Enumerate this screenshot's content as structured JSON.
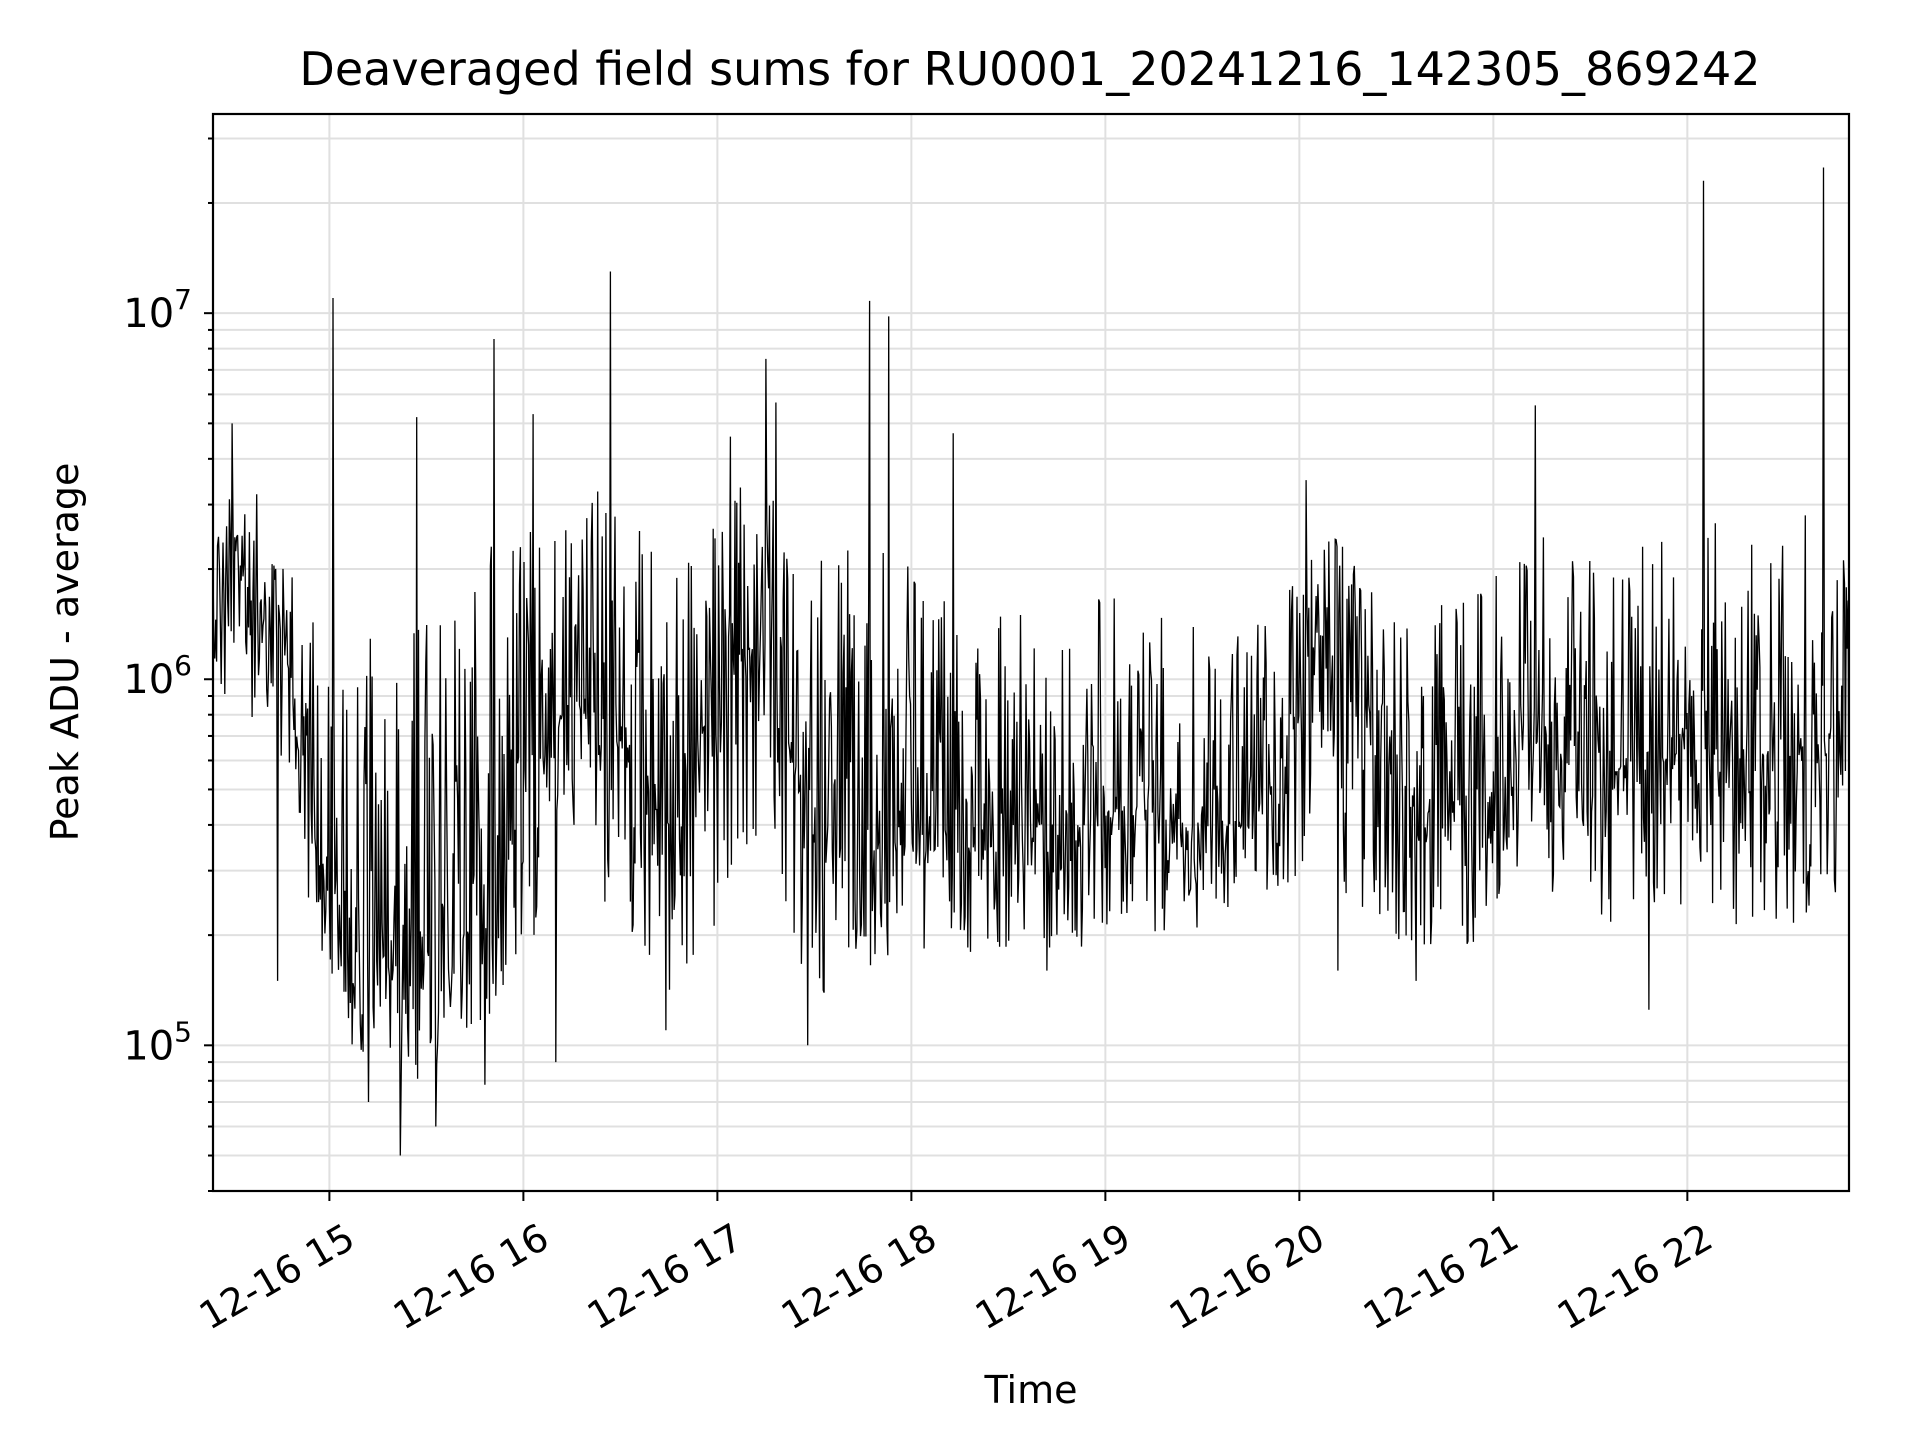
{
  "chart_data": {
    "type": "line",
    "title": "Deaveraged field sums for RU0001_20241216_142305_869242",
    "xlabel": "Time",
    "ylabel": "Peak ADU - average",
    "yscale": "log",
    "grid": true,
    "colors": {
      "line": "#000000",
      "grid": "#e0e0e0",
      "axes": "#000000"
    },
    "xlim": [
      "2024-12-16 14:24",
      "2024-12-16 22:50"
    ],
    "ylim": [
      40000,
      35000000
    ],
    "xticks": [
      {
        "value": "2024-12-16 15:00",
        "label": "12-16 15"
      },
      {
        "value": "2024-12-16 16:00",
        "label": "12-16 16"
      },
      {
        "value": "2024-12-16 17:00",
        "label": "12-16 17"
      },
      {
        "value": "2024-12-16 18:00",
        "label": "12-16 18"
      },
      {
        "value": "2024-12-16 19:00",
        "label": "12-16 19"
      },
      {
        "value": "2024-12-16 20:00",
        "label": "12-16 20"
      },
      {
        "value": "2024-12-16 21:00",
        "label": "12-16 21"
      },
      {
        "value": "2024-12-16 22:00",
        "label": "12-16 22"
      }
    ],
    "yticks": [
      {
        "value": 100000,
        "base": "10",
        "exp": "5"
      },
      {
        "value": 1000000,
        "base": "10",
        "exp": "6"
      },
      {
        "value": 10000000,
        "base": "10",
        "exp": "7"
      }
    ],
    "series": [
      {
        "x": [
          "2024-12-16 14:25",
          "2024-12-16 14:35",
          "2024-12-16 14:45",
          "2024-12-16 14:55",
          "2024-12-16 15:05",
          "2024-12-16 15:15",
          "2024-12-16 15:25",
          "2024-12-16 15:35",
          "2024-12-16 15:45",
          "2024-12-16 15:55",
          "2024-12-16 16:05",
          "2024-12-16 16:15",
          "2024-12-16 16:25",
          "2024-12-16 16:35",
          "2024-12-16 16:45",
          "2024-12-16 16:55",
          "2024-12-16 17:05",
          "2024-12-16 17:15",
          "2024-12-16 17:25",
          "2024-12-16 17:35",
          "2024-12-16 17:45",
          "2024-12-16 17:55",
          "2024-12-16 18:05",
          "2024-12-16 18:15",
          "2024-12-16 18:25",
          "2024-12-16 18:35",
          "2024-12-16 18:45",
          "2024-12-16 18:55",
          "2024-12-16 19:05",
          "2024-12-16 19:15",
          "2024-12-16 19:25",
          "2024-12-16 19:35",
          "2024-12-16 19:45",
          "2024-12-16 19:55",
          "2024-12-16 20:05",
          "2024-12-16 20:15",
          "2024-12-16 20:25",
          "2024-12-16 20:35",
          "2024-12-16 20:45",
          "2024-12-16 20:55",
          "2024-12-16 21:05",
          "2024-12-16 21:15",
          "2024-12-16 21:25",
          "2024-12-16 21:35",
          "2024-12-16 21:45",
          "2024-12-16 21:55",
          "2024-12-16 22:05",
          "2024-12-16 22:15",
          "2024-12-16 22:25",
          "2024-12-16 22:35",
          "2024-12-16 22:45",
          "2024-12-16 22:50"
        ],
        "y": [
          1500000,
          1800000,
          1400000,
          400000,
          180000,
          170000,
          150000,
          140000,
          250000,
          350000,
          600000,
          900000,
          700000,
          650000,
          400000,
          700000,
          1100000,
          1300000,
          500000,
          350000,
          300000,
          400000,
          350000,
          350000,
          350000,
          400000,
          400000,
          400000,
          450000,
          450000,
          400000,
          400000,
          420000,
          550000,
          1500000,
          900000,
          600000,
          500000,
          450000,
          500000,
          600000,
          700000,
          600000,
          550000,
          600000,
          650000,
          650000,
          600000,
          600000,
          650000,
          700000,
          600000
        ],
        "y_max_envelope": [
          3000000,
          3500000,
          2500000,
          1500000,
          1800000,
          1200000,
          1500000,
          1800000,
          2500000,
          2800000,
          3000000,
          3200000,
          3500000,
          3000000,
          2200000,
          2600000,
          3500000,
          3800000,
          2800000,
          2000000,
          2500000,
          2200000,
          2000000,
          1800000,
          1600000,
          1700000,
          1800000,
          1700000,
          1700000,
          1600000,
          1600000,
          1500000,
          1400000,
          1600000,
          3000000,
          2200000,
          1800000,
          1800000,
          1600000,
          1800000,
          2000000,
          2600000,
          2200000,
          2200000,
          2400000,
          2600000,
          2800000,
          2500000,
          2600000,
          2800000,
          3000000,
          2000000
        ],
        "y_min_envelope": [
          900000,
          700000,
          600000,
          200000,
          100000,
          90000,
          70000,
          90000,
          100000,
          150000,
          200000,
          250000,
          220000,
          200000,
          120000,
          150000,
          300000,
          350000,
          150000,
          130000,
          160000,
          180000,
          180000,
          170000,
          180000,
          180000,
          180000,
          180000,
          200000,
          200000,
          200000,
          220000,
          250000,
          260000,
          300000,
          250000,
          200000,
          180000,
          170000,
          180000,
          220000,
          250000,
          220000,
          200000,
          200000,
          220000,
          230000,
          200000,
          200000,
          220000,
          250000,
          250000
        ],
        "spikes": [
          {
            "x": "2024-12-16 14:30",
            "y": 5000000
          },
          {
            "x": "2024-12-16 15:01",
            "y": 11000000
          },
          {
            "x": "2024-12-16 15:27",
            "y": 5200000
          },
          {
            "x": "2024-12-16 15:51",
            "y": 8500000
          },
          {
            "x": "2024-12-16 16:03",
            "y": 5300000
          },
          {
            "x": "2024-12-16 16:27",
            "y": 13000000
          },
          {
            "x": "2024-12-16 17:04",
            "y": 4600000
          },
          {
            "x": "2024-12-16 17:15",
            "y": 7500000
          },
          {
            "x": "2024-12-16 17:18",
            "y": 5700000
          },
          {
            "x": "2024-12-16 17:47",
            "y": 10800000
          },
          {
            "x": "2024-12-16 17:53",
            "y": 9800000
          },
          {
            "x": "2024-12-16 18:13",
            "y": 4700000
          },
          {
            "x": "2024-12-16 20:02",
            "y": 3500000
          },
          {
            "x": "2024-12-16 21:13",
            "y": 5600000
          },
          {
            "x": "2024-12-16 22:05",
            "y": 23000000
          },
          {
            "x": "2024-12-16 22:42",
            "y": 25000000
          }
        ],
        "dips": [
          {
            "x": "2024-12-16 14:44",
            "y": 150000
          },
          {
            "x": "2024-12-16 15:12",
            "y": 70000
          },
          {
            "x": "2024-12-16 15:22",
            "y": 50000
          },
          {
            "x": "2024-12-16 15:33",
            "y": 60000
          },
          {
            "x": "2024-12-16 15:48",
            "y": 78000
          },
          {
            "x": "2024-12-16 16:10",
            "y": 90000
          },
          {
            "x": "2024-12-16 16:44",
            "y": 110000
          },
          {
            "x": "2024-12-16 17:28",
            "y": 100000
          },
          {
            "x": "2024-12-16 18:42",
            "y": 160000
          },
          {
            "x": "2024-12-16 20:12",
            "y": 160000
          },
          {
            "x": "2024-12-16 20:36",
            "y": 150000
          },
          {
            "x": "2024-12-16 21:48",
            "y": 125000
          }
        ]
      }
    ]
  }
}
